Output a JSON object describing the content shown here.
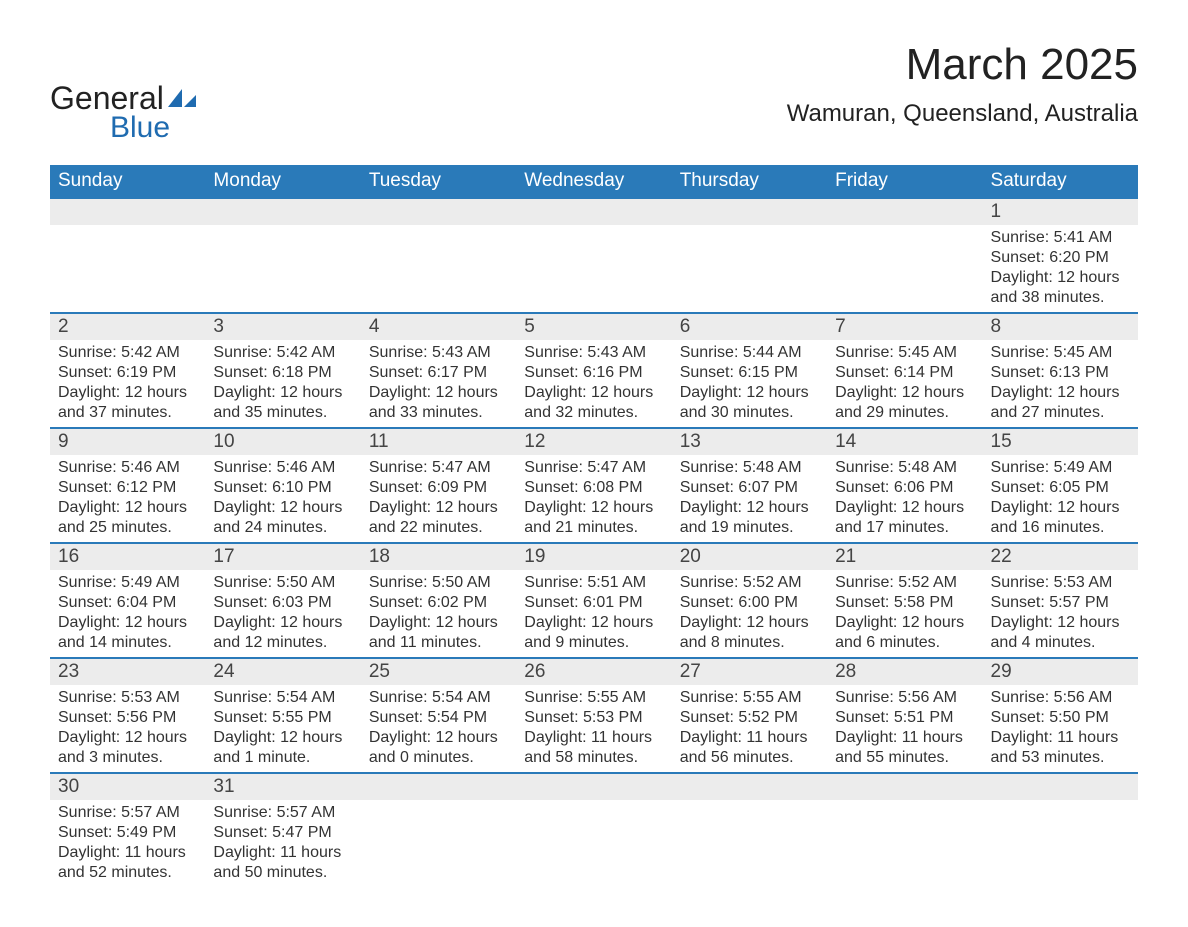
{
  "brand": {
    "word1": "General",
    "word2": "Blue"
  },
  "title": "March 2025",
  "location": "Wamuran, Queensland, Australia",
  "weekdays": [
    "Sunday",
    "Monday",
    "Tuesday",
    "Wednesday",
    "Thursday",
    "Friday",
    "Saturday"
  ],
  "colors": {
    "header_bg": "#2a7ab9",
    "header_fg": "#ffffff",
    "daynum_bg": "#ececec",
    "row_divider": "#2a7ab9",
    "text": "#333333",
    "background": "#ffffff"
  },
  "typography": {
    "title_fontsize": 44,
    "location_fontsize": 24,
    "weekday_fontsize": 19,
    "daynum_fontsize": 19,
    "body_fontsize": 16,
    "font_family": "Arial"
  },
  "layout": {
    "start_weekday_index": 6,
    "days_in_month": 31,
    "columns": 7,
    "rows": 6
  },
  "days": [
    {
      "n": 1,
      "sunrise": "5:41 AM",
      "sunset": "6:20 PM",
      "daylight": "12 hours and 38 minutes."
    },
    {
      "n": 2,
      "sunrise": "5:42 AM",
      "sunset": "6:19 PM",
      "daylight": "12 hours and 37 minutes."
    },
    {
      "n": 3,
      "sunrise": "5:42 AM",
      "sunset": "6:18 PM",
      "daylight": "12 hours and 35 minutes."
    },
    {
      "n": 4,
      "sunrise": "5:43 AM",
      "sunset": "6:17 PM",
      "daylight": "12 hours and 33 minutes."
    },
    {
      "n": 5,
      "sunrise": "5:43 AM",
      "sunset": "6:16 PM",
      "daylight": "12 hours and 32 minutes."
    },
    {
      "n": 6,
      "sunrise": "5:44 AM",
      "sunset": "6:15 PM",
      "daylight": "12 hours and 30 minutes."
    },
    {
      "n": 7,
      "sunrise": "5:45 AM",
      "sunset": "6:14 PM",
      "daylight": "12 hours and 29 minutes."
    },
    {
      "n": 8,
      "sunrise": "5:45 AM",
      "sunset": "6:13 PM",
      "daylight": "12 hours and 27 minutes."
    },
    {
      "n": 9,
      "sunrise": "5:46 AM",
      "sunset": "6:12 PM",
      "daylight": "12 hours and 25 minutes."
    },
    {
      "n": 10,
      "sunrise": "5:46 AM",
      "sunset": "6:10 PM",
      "daylight": "12 hours and 24 minutes."
    },
    {
      "n": 11,
      "sunrise": "5:47 AM",
      "sunset": "6:09 PM",
      "daylight": "12 hours and 22 minutes."
    },
    {
      "n": 12,
      "sunrise": "5:47 AM",
      "sunset": "6:08 PM",
      "daylight": "12 hours and 21 minutes."
    },
    {
      "n": 13,
      "sunrise": "5:48 AM",
      "sunset": "6:07 PM",
      "daylight": "12 hours and 19 minutes."
    },
    {
      "n": 14,
      "sunrise": "5:48 AM",
      "sunset": "6:06 PM",
      "daylight": "12 hours and 17 minutes."
    },
    {
      "n": 15,
      "sunrise": "5:49 AM",
      "sunset": "6:05 PM",
      "daylight": "12 hours and 16 minutes."
    },
    {
      "n": 16,
      "sunrise": "5:49 AM",
      "sunset": "6:04 PM",
      "daylight": "12 hours and 14 minutes."
    },
    {
      "n": 17,
      "sunrise": "5:50 AM",
      "sunset": "6:03 PM",
      "daylight": "12 hours and 12 minutes."
    },
    {
      "n": 18,
      "sunrise": "5:50 AM",
      "sunset": "6:02 PM",
      "daylight": "12 hours and 11 minutes."
    },
    {
      "n": 19,
      "sunrise": "5:51 AM",
      "sunset": "6:01 PM",
      "daylight": "12 hours and 9 minutes."
    },
    {
      "n": 20,
      "sunrise": "5:52 AM",
      "sunset": "6:00 PM",
      "daylight": "12 hours and 8 minutes."
    },
    {
      "n": 21,
      "sunrise": "5:52 AM",
      "sunset": "5:58 PM",
      "daylight": "12 hours and 6 minutes."
    },
    {
      "n": 22,
      "sunrise": "5:53 AM",
      "sunset": "5:57 PM",
      "daylight": "12 hours and 4 minutes."
    },
    {
      "n": 23,
      "sunrise": "5:53 AM",
      "sunset": "5:56 PM",
      "daylight": "12 hours and 3 minutes."
    },
    {
      "n": 24,
      "sunrise": "5:54 AM",
      "sunset": "5:55 PM",
      "daylight": "12 hours and 1 minute."
    },
    {
      "n": 25,
      "sunrise": "5:54 AM",
      "sunset": "5:54 PM",
      "daylight": "12 hours and 0 minutes."
    },
    {
      "n": 26,
      "sunrise": "5:55 AM",
      "sunset": "5:53 PM",
      "daylight": "11 hours and 58 minutes."
    },
    {
      "n": 27,
      "sunrise": "5:55 AM",
      "sunset": "5:52 PM",
      "daylight": "11 hours and 56 minutes."
    },
    {
      "n": 28,
      "sunrise": "5:56 AM",
      "sunset": "5:51 PM",
      "daylight": "11 hours and 55 minutes."
    },
    {
      "n": 29,
      "sunrise": "5:56 AM",
      "sunset": "5:50 PM",
      "daylight": "11 hours and 53 minutes."
    },
    {
      "n": 30,
      "sunrise": "5:57 AM",
      "sunset": "5:49 PM",
      "daylight": "11 hours and 52 minutes."
    },
    {
      "n": 31,
      "sunrise": "5:57 AM",
      "sunset": "5:47 PM",
      "daylight": "11 hours and 50 minutes."
    }
  ],
  "labels": {
    "sunrise_prefix": "Sunrise: ",
    "sunset_prefix": "Sunset: ",
    "daylight_prefix": "Daylight: "
  }
}
